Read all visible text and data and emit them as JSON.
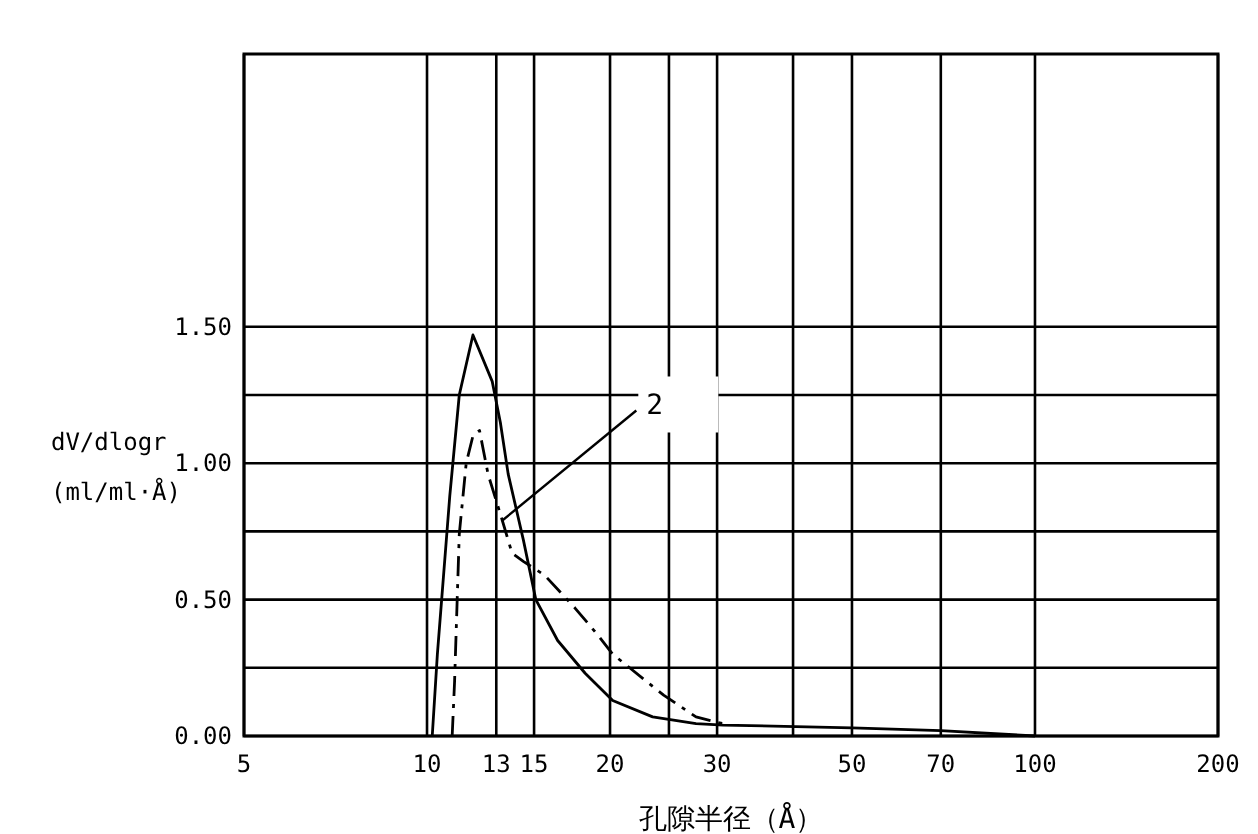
{
  "chart_data": {
    "type": "line",
    "xlabel": "孔隙半径（Å）",
    "ylabel": "dV/dlogr (ml/ml·Å)",
    "log": "x",
    "grid": true,
    "xlim": [
      5,
      200
    ],
    "ylim": [
      0,
      2.5
    ],
    "xticks": [
      5,
      10,
      13,
      15,
      20,
      {
        "value": 25,
        "label": null
      },
      30,
      {
        "value": 40,
        "label": null
      },
      50,
      70,
      100,
      200
    ],
    "yticks": [
      {
        "value": 0,
        "label": "0.00"
      },
      {
        "value": 0.25,
        "label": null
      },
      {
        "value": 0.5,
        "label": "0.50"
      },
      {
        "value": 0.75,
        "label": null
      },
      {
        "value": 1,
        "label": "1.00"
      },
      {
        "value": 1.25,
        "label": null
      },
      {
        "value": 1.5,
        "label": "1.50"
      }
    ],
    "series": [
      {
        "color": "#000000",
        "line_style": "solid",
        "x": [
          10.2,
          10.4,
          10.9,
          11.3,
          11.9,
          12.8,
          13.2,
          13.6,
          14.4,
          15.1,
          16.4,
          18.2,
          20.2,
          23.5,
          27.7,
          30.7,
          50,
          70,
          100
        ],
        "values": [
          0,
          0.3,
          0.88,
          1.25,
          1.47,
          1.3,
          1.15,
          0.96,
          0.72,
          0.5,
          0.35,
          0.23,
          0.13,
          0.07,
          0.045,
          0.04,
          0.03,
          0.02,
          0
        ]
      },
      {
        "name": "2",
        "color": "#000000",
        "line_style": "dashed",
        "x": [
          11.0,
          11.1,
          11.3,
          11.6,
          11.9,
          12.2,
          12.6,
          13.3,
          13.8,
          14.4,
          15.6,
          17.5,
          19.1,
          20.2,
          24.5,
          27.7,
          30.7
        ],
        "values": [
          0,
          0.2,
          0.74,
          1.0,
          1.1,
          1.12,
          0.96,
          0.79,
          0.67,
          0.64,
          0.59,
          0.47,
          0.37,
          0.3,
          0.15,
          0.07,
          0.045
        ]
      }
    ]
  }
}
